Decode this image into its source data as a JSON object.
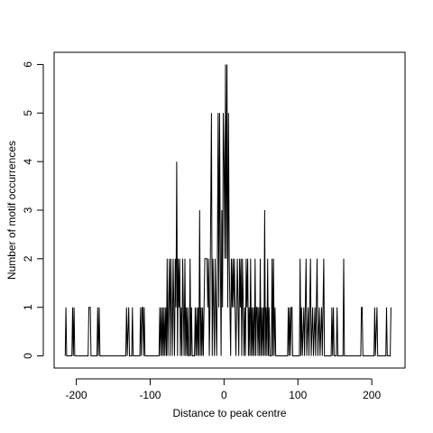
{
  "chart_data": {
    "type": "line",
    "title": "",
    "xlabel": "Distance to peak centre",
    "ylabel": "Number of motif occurrences",
    "xlim": [
      -230,
      245
    ],
    "ylim": [
      -0.25,
      6.25
    ],
    "x_ticks": [
      -200,
      -100,
      0,
      100,
      200
    ],
    "y_ticks": [
      0,
      1,
      2,
      3,
      4,
      5,
      6
    ],
    "x_tick_labels": [
      "-200",
      "-100",
      "0",
      "100",
      "200"
    ],
    "y_tick_labels": [
      "0",
      "1",
      "2",
      "3",
      "4",
      "5",
      "6"
    ],
    "grid": false,
    "legend": "none",
    "line_color": "#000000",
    "series": [
      {
        "values": [
          [
            -215,
            0
          ],
          [
            -214,
            1
          ],
          [
            -213,
            0
          ],
          [
            -206,
            0
          ],
          [
            -205,
            1
          ],
          [
            -204,
            0
          ],
          [
            -203,
            1
          ],
          [
            -202,
            0
          ],
          [
            -184,
            0
          ],
          [
            -183,
            1
          ],
          [
            -182,
            1
          ],
          [
            -181,
            1
          ],
          [
            -180,
            0
          ],
          [
            -172,
            0
          ],
          [
            -171,
            1
          ],
          [
            -170,
            0
          ],
          [
            -169,
            1
          ],
          [
            -168,
            0
          ],
          [
            -133,
            0
          ],
          [
            -132,
            1
          ],
          [
            -131,
            0
          ],
          [
            -129,
            1
          ],
          [
            -128,
            0
          ],
          [
            -125,
            0
          ],
          [
            -124,
            1
          ],
          [
            -123,
            0
          ],
          [
            -114,
            0
          ],
          [
            -113,
            1
          ],
          [
            -112,
            0
          ],
          [
            -111,
            1
          ],
          [
            -110,
            1
          ],
          [
            -109,
            0
          ],
          [
            -108,
            1
          ],
          [
            -107,
            0
          ],
          [
            -88,
            0
          ],
          [
            -87,
            1
          ],
          [
            -86,
            0
          ],
          [
            -85,
            1
          ],
          [
            -84,
            0
          ],
          [
            -83,
            1
          ],
          [
            -82,
            0
          ],
          [
            -81,
            1
          ],
          [
            -80,
            0
          ],
          [
            -79,
            1
          ],
          [
            -78,
            0
          ],
          [
            -77,
            2
          ],
          [
            -76,
            0
          ],
          [
            -75,
            1
          ],
          [
            -74,
            2
          ],
          [
            -73,
            0
          ],
          [
            -72,
            2
          ],
          [
            -71,
            1
          ],
          [
            -70,
            0
          ],
          [
            -69,
            2
          ],
          [
            -68,
            1
          ],
          [
            -67,
            0
          ],
          [
            -66,
            2
          ],
          [
            -65,
            1
          ],
          [
            -64,
            4
          ],
          [
            -63,
            0
          ],
          [
            -62,
            2
          ],
          [
            -61,
            1
          ],
          [
            -60,
            2
          ],
          [
            -59,
            0
          ],
          [
            -58,
            1
          ],
          [
            -57,
            0
          ],
          [
            -56,
            2
          ],
          [
            -55,
            1
          ],
          [
            -54,
            0
          ],
          [
            -53,
            2
          ],
          [
            -52,
            0
          ],
          [
            -51,
            1
          ],
          [
            -50,
            0
          ],
          [
            -49,
            1
          ],
          [
            -48,
            0
          ],
          [
            -47,
            0
          ],
          [
            -46,
            2
          ],
          [
            -45,
            0
          ],
          [
            -44,
            1
          ],
          [
            -43,
            0
          ],
          [
            -40,
            0
          ],
          [
            -39,
            1
          ],
          [
            -38,
            0
          ],
          [
            -37,
            1
          ],
          [
            -36,
            0
          ],
          [
            -35,
            1
          ],
          [
            -34,
            0
          ],
          [
            -33,
            3
          ],
          [
            -32,
            0
          ],
          [
            -31,
            1
          ],
          [
            -30,
            0
          ],
          [
            -29,
            1
          ],
          [
            -28,
            0
          ],
          [
            -27,
            1
          ],
          [
            -26,
            2
          ],
          [
            -25,
            2
          ],
          [
            -24,
            2
          ],
          [
            -23,
            2
          ],
          [
            -22,
            1
          ],
          [
            -21,
            2
          ],
          [
            -20,
            0
          ],
          [
            -19,
            1
          ],
          [
            -18,
            3
          ],
          [
            -17,
            5
          ],
          [
            -16,
            0
          ],
          [
            -15,
            2
          ],
          [
            -14,
            1
          ],
          [
            -13,
            0
          ],
          [
            -12,
            2
          ],
          [
            -11,
            1
          ],
          [
            -10,
            0
          ],
          [
            -9,
            2
          ],
          [
            -8,
            5
          ],
          [
            -7,
            1
          ],
          [
            -6,
            5
          ],
          [
            -5,
            2
          ],
          [
            -4,
            0
          ],
          [
            -3,
            3
          ],
          [
            -2,
            1
          ],
          [
            -1,
            5
          ],
          [
            0,
            4
          ],
          [
            1,
            2
          ],
          [
            2,
            6
          ],
          [
            3,
            2
          ],
          [
            4,
            6
          ],
          [
            5,
            1
          ],
          [
            6,
            5
          ],
          [
            7,
            2
          ],
          [
            8,
            1
          ],
          [
            9,
            0
          ],
          [
            10,
            2
          ],
          [
            11,
            1
          ],
          [
            12,
            2
          ],
          [
            13,
            1
          ],
          [
            14,
            2
          ],
          [
            15,
            1
          ],
          [
            16,
            0
          ],
          [
            17,
            1
          ],
          [
            18,
            2
          ],
          [
            19,
            1
          ],
          [
            20,
            0
          ],
          [
            21,
            2
          ],
          [
            22,
            1
          ],
          [
            23,
            2
          ],
          [
            24,
            0
          ],
          [
            25,
            2
          ],
          [
            26,
            1
          ],
          [
            27,
            0
          ],
          [
            28,
            1
          ],
          [
            29,
            0
          ],
          [
            30,
            2
          ],
          [
            31,
            1
          ],
          [
            32,
            2
          ],
          [
            33,
            0
          ],
          [
            34,
            1
          ],
          [
            35,
            0
          ],
          [
            36,
            2
          ],
          [
            37,
            0
          ],
          [
            38,
            1
          ],
          [
            39,
            0
          ],
          [
            40,
            1
          ],
          [
            41,
            0
          ],
          [
            42,
            2
          ],
          [
            43,
            0
          ],
          [
            44,
            1
          ],
          [
            45,
            1
          ],
          [
            46,
            0
          ],
          [
            47,
            1
          ],
          [
            48,
            0
          ],
          [
            49,
            2
          ],
          [
            50,
            0
          ],
          [
            51,
            1
          ],
          [
            52,
            0
          ],
          [
            53,
            1
          ],
          [
            54,
            0
          ],
          [
            55,
            3
          ],
          [
            56,
            0
          ],
          [
            57,
            1
          ],
          [
            58,
            0
          ],
          [
            59,
            2
          ],
          [
            60,
            0
          ],
          [
            61,
            1
          ],
          [
            62,
            0
          ],
          [
            64,
            0
          ],
          [
            65,
            2
          ],
          [
            66,
            0
          ],
          [
            67,
            2
          ],
          [
            68,
            0
          ],
          [
            69,
            1
          ],
          [
            70,
            0
          ],
          [
            86,
            0
          ],
          [
            87,
            1
          ],
          [
            88,
            0
          ],
          [
            89,
            1
          ],
          [
            90,
            0
          ],
          [
            91,
            1
          ],
          [
            92,
            1
          ],
          [
            93,
            0
          ],
          [
            102,
            0
          ],
          [
            103,
            2
          ],
          [
            104,
            0
          ],
          [
            105,
            1
          ],
          [
            106,
            0
          ],
          [
            108,
            1
          ],
          [
            109,
            0
          ],
          [
            111,
            2
          ],
          [
            112,
            0
          ],
          [
            114,
            1
          ],
          [
            115,
            0
          ],
          [
            117,
            2
          ],
          [
            118,
            0
          ],
          [
            120,
            1
          ],
          [
            121,
            0
          ],
          [
            123,
            1
          ],
          [
            124,
            0
          ],
          [
            126,
            2
          ],
          [
            127,
            0
          ],
          [
            129,
            1
          ],
          [
            130,
            0
          ],
          [
            132,
            1
          ],
          [
            133,
            0
          ],
          [
            135,
            2
          ],
          [
            136,
            0
          ],
          [
            145,
            0
          ],
          [
            146,
            1
          ],
          [
            147,
            0
          ],
          [
            148,
            1
          ],
          [
            149,
            0
          ],
          [
            152,
            0
          ],
          [
            153,
            1
          ],
          [
            154,
            0
          ],
          [
            161,
            0
          ],
          [
            162,
            2
          ],
          [
            163,
            0
          ],
          [
            185,
            0
          ],
          [
            186,
            1
          ],
          [
            187,
            1
          ],
          [
            188,
            0
          ],
          [
            203,
            0
          ],
          [
            204,
            1
          ],
          [
            205,
            0
          ],
          [
            207,
            1
          ],
          [
            208,
            0
          ],
          [
            219,
            0
          ],
          [
            220,
            1
          ],
          [
            221,
            0
          ],
          [
            225,
            0
          ],
          [
            226,
            1
          ]
        ]
      }
    ]
  }
}
